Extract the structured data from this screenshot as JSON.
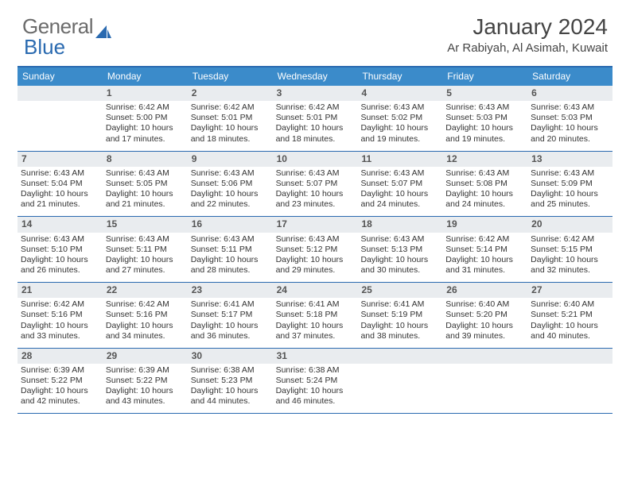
{
  "brand": {
    "text1": "General",
    "text2": "Blue",
    "color_gray": "#6b6b6b",
    "color_blue": "#2a6ab0"
  },
  "title": "January 2024",
  "location": "Ar Rabiyah, Al Asimah, Kuwait",
  "colors": {
    "header_bg": "#3b8bca",
    "border": "#2a6ab0",
    "daynum_bg": "#e9ecef",
    "text": "#333333"
  },
  "dow": [
    "Sunday",
    "Monday",
    "Tuesday",
    "Wednesday",
    "Thursday",
    "Friday",
    "Saturday"
  ],
  "start_offset": 1,
  "days": [
    {
      "n": 1,
      "sr": "6:42 AM",
      "ss": "5:00 PM",
      "dl": "10 hours and 17 minutes."
    },
    {
      "n": 2,
      "sr": "6:42 AM",
      "ss": "5:01 PM",
      "dl": "10 hours and 18 minutes."
    },
    {
      "n": 3,
      "sr": "6:42 AM",
      "ss": "5:01 PM",
      "dl": "10 hours and 18 minutes."
    },
    {
      "n": 4,
      "sr": "6:43 AM",
      "ss": "5:02 PM",
      "dl": "10 hours and 19 minutes."
    },
    {
      "n": 5,
      "sr": "6:43 AM",
      "ss": "5:03 PM",
      "dl": "10 hours and 19 minutes."
    },
    {
      "n": 6,
      "sr": "6:43 AM",
      "ss": "5:03 PM",
      "dl": "10 hours and 20 minutes."
    },
    {
      "n": 7,
      "sr": "6:43 AM",
      "ss": "5:04 PM",
      "dl": "10 hours and 21 minutes."
    },
    {
      "n": 8,
      "sr": "6:43 AM",
      "ss": "5:05 PM",
      "dl": "10 hours and 21 minutes."
    },
    {
      "n": 9,
      "sr": "6:43 AM",
      "ss": "5:06 PM",
      "dl": "10 hours and 22 minutes."
    },
    {
      "n": 10,
      "sr": "6:43 AM",
      "ss": "5:07 PM",
      "dl": "10 hours and 23 minutes."
    },
    {
      "n": 11,
      "sr": "6:43 AM",
      "ss": "5:07 PM",
      "dl": "10 hours and 24 minutes."
    },
    {
      "n": 12,
      "sr": "6:43 AM",
      "ss": "5:08 PM",
      "dl": "10 hours and 24 minutes."
    },
    {
      "n": 13,
      "sr": "6:43 AM",
      "ss": "5:09 PM",
      "dl": "10 hours and 25 minutes."
    },
    {
      "n": 14,
      "sr": "6:43 AM",
      "ss": "5:10 PM",
      "dl": "10 hours and 26 minutes."
    },
    {
      "n": 15,
      "sr": "6:43 AM",
      "ss": "5:11 PM",
      "dl": "10 hours and 27 minutes."
    },
    {
      "n": 16,
      "sr": "6:43 AM",
      "ss": "5:11 PM",
      "dl": "10 hours and 28 minutes."
    },
    {
      "n": 17,
      "sr": "6:43 AM",
      "ss": "5:12 PM",
      "dl": "10 hours and 29 minutes."
    },
    {
      "n": 18,
      "sr": "6:43 AM",
      "ss": "5:13 PM",
      "dl": "10 hours and 30 minutes."
    },
    {
      "n": 19,
      "sr": "6:42 AM",
      "ss": "5:14 PM",
      "dl": "10 hours and 31 minutes."
    },
    {
      "n": 20,
      "sr": "6:42 AM",
      "ss": "5:15 PM",
      "dl": "10 hours and 32 minutes."
    },
    {
      "n": 21,
      "sr": "6:42 AM",
      "ss": "5:16 PM",
      "dl": "10 hours and 33 minutes."
    },
    {
      "n": 22,
      "sr": "6:42 AM",
      "ss": "5:16 PM",
      "dl": "10 hours and 34 minutes."
    },
    {
      "n": 23,
      "sr": "6:41 AM",
      "ss": "5:17 PM",
      "dl": "10 hours and 36 minutes."
    },
    {
      "n": 24,
      "sr": "6:41 AM",
      "ss": "5:18 PM",
      "dl": "10 hours and 37 minutes."
    },
    {
      "n": 25,
      "sr": "6:41 AM",
      "ss": "5:19 PM",
      "dl": "10 hours and 38 minutes."
    },
    {
      "n": 26,
      "sr": "6:40 AM",
      "ss": "5:20 PM",
      "dl": "10 hours and 39 minutes."
    },
    {
      "n": 27,
      "sr": "6:40 AM",
      "ss": "5:21 PM",
      "dl": "10 hours and 40 minutes."
    },
    {
      "n": 28,
      "sr": "6:39 AM",
      "ss": "5:22 PM",
      "dl": "10 hours and 42 minutes."
    },
    {
      "n": 29,
      "sr": "6:39 AM",
      "ss": "5:22 PM",
      "dl": "10 hours and 43 minutes."
    },
    {
      "n": 30,
      "sr": "6:38 AM",
      "ss": "5:23 PM",
      "dl": "10 hours and 44 minutes."
    },
    {
      "n": 31,
      "sr": "6:38 AM",
      "ss": "5:24 PM",
      "dl": "10 hours and 46 minutes."
    }
  ],
  "labels": {
    "sunrise": "Sunrise:",
    "sunset": "Sunset:",
    "daylight": "Daylight:"
  }
}
